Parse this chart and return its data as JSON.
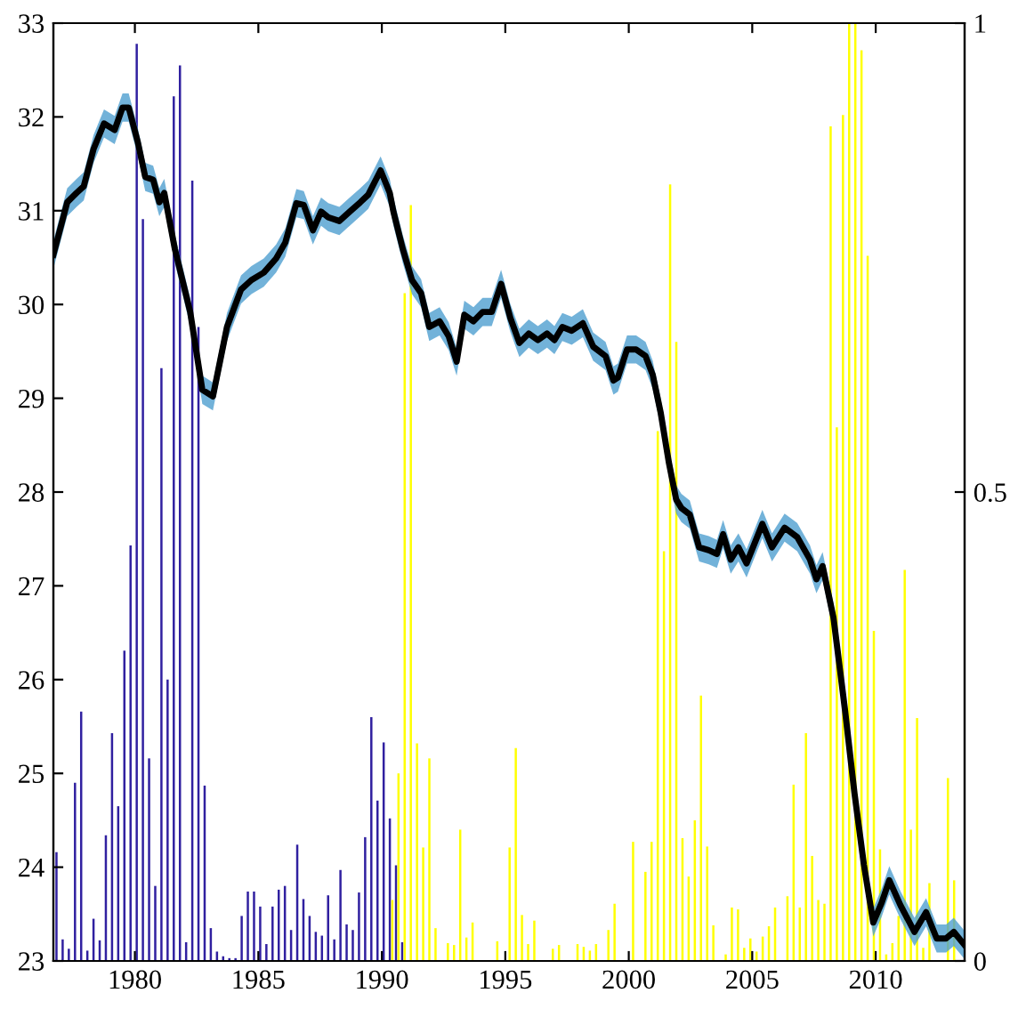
{
  "chart_data": {
    "type": "line",
    "xlim": [
      1976.7,
      2013.6
    ],
    "xticks": [
      1980,
      1985,
      1990,
      1995,
      2000,
      2005,
      2010
    ],
    "ylim": [
      23,
      33
    ],
    "yticks": [
      23,
      24,
      25,
      26,
      27,
      28,
      29,
      30,
      31,
      32,
      33
    ],
    "y2lim": [
      0,
      1
    ],
    "y2ticks": [
      0,
      0.5,
      1
    ],
    "grid": false,
    "legend": false,
    "series": [
      {
        "type": "bar",
        "axis": "y2",
        "color": "#3020a0",
        "x": [
          1976.875,
          1977.125,
          1977.375,
          1977.625,
          1977.875,
          1978.125,
          1978.375,
          1978.625,
          1978.875,
          1979.125,
          1979.375,
          1979.625,
          1979.875,
          1980.125,
          1980.375,
          1980.625,
          1980.875,
          1981.125,
          1981.375,
          1981.625,
          1981.875,
          1982.125,
          1982.375,
          1982.625,
          1982.875,
          1983.125,
          1983.375,
          1983.625,
          1983.875,
          1984.125,
          1984.375,
          1984.625,
          1984.875,
          1985.125,
          1985.375,
          1985.625,
          1985.875,
          1986.125,
          1986.375,
          1986.625,
          1986.875,
          1987.125,
          1987.375,
          1987.625,
          1987.875,
          1988.125,
          1988.375,
          1988.625,
          1988.875,
          1989.125,
          1989.375,
          1989.625,
          1989.875,
          1990.125,
          1990.375,
          1990.625,
          1990.875
        ],
        "values": [
          0.116,
          0.023,
          0.013,
          0.19,
          0.266,
          0.011,
          0.045,
          0.022,
          0.134,
          0.243,
          0.165,
          0.331,
          0.443,
          0.978,
          0.791,
          0.216,
          0.08,
          0.632,
          0.3,
          0.922,
          0.955,
          0.02,
          0.832,
          0.676,
          0.187,
          0.035,
          0.01,
          0.005,
          0.003,
          0.003,
          0.048,
          0.074,
          0.074,
          0.058,
          0.018,
          0.058,
          0.076,
          0.08,
          0.033,
          0.124,
          0.066,
          0.048,
          0.031,
          0.027,
          0.07,
          0.023,
          0.097,
          0.039,
          0.033,
          0.073,
          0.132,
          0.26,
          0.171,
          0.233,
          0.152,
          0.102,
          0.02
        ]
      },
      {
        "type": "bar",
        "axis": "y2",
        "color": "#ffff00",
        "x": [
          1990.375,
          1990.625,
          1990.875,
          1991.125,
          1991.375,
          1991.625,
          1991.875,
          1992.125,
          1992.375,
          1992.625,
          1992.875,
          1993.125,
          1993.375,
          1993.625,
          1993.875,
          1994.125,
          1994.375,
          1994.625,
          1994.875,
          1995.125,
          1995.375,
          1995.625,
          1995.875,
          1996.125,
          1996.375,
          1996.625,
          1996.875,
          1997.125,
          1997.375,
          1997.625,
          1997.875,
          1998.125,
          1998.375,
          1998.625,
          1998.875,
          1999.125,
          1999.375,
          1999.625,
          1999.875,
          2000.125,
          2000.375,
          2000.625,
          2000.875,
          2001.125,
          2001.375,
          2001.625,
          2001.875,
          2002.125,
          2002.375,
          2002.625,
          2002.875,
          2003.125,
          2003.375,
          2003.625,
          2003.875,
          2004.125,
          2004.375,
          2004.625,
          2004.875,
          2005.125,
          2005.375,
          2005.625,
          2005.875,
          2006.125,
          2006.375,
          2006.625,
          2006.875,
          2007.125,
          2007.375,
          2007.625,
          2007.875,
          2008.125,
          2008.375,
          2008.625,
          2008.875,
          2009.125,
          2009.375,
          2009.625,
          2009.875,
          2010.125,
          2010.375,
          2010.625,
          2010.875,
          2011.125,
          2011.375,
          2011.625,
          2011.875,
          2012.125,
          2012.375,
          2012.625,
          2012.875,
          2013.125
        ],
        "values": [
          0.065,
          0.2,
          0.712,
          0.806,
          0.232,
          0.121,
          0.216,
          0.035,
          0,
          0.019,
          0.017,
          0.14,
          0.025,
          0.041,
          0,
          0,
          0,
          0.021,
          0,
          0.121,
          0.227,
          0.049,
          0.018,
          0.043,
          0,
          0,
          0.013,
          0.017,
          0,
          0,
          0.018,
          0.015,
          0.011,
          0.018,
          0,
          0.033,
          0.061,
          0,
          0,
          0.127,
          0,
          0.095,
          0.127,
          0.565,
          0.437,
          0.828,
          0.66,
          0.131,
          0.09,
          0.15,
          0.283,
          0.122,
          0.038,
          0,
          0.007,
          0.057,
          0.055,
          0.014,
          0.024,
          0.01,
          0.026,
          0.037,
          0.057,
          0,
          0.069,
          0.188,
          0.057,
          0.243,
          0.112,
          0.065,
          0.061,
          0.89,
          0.569,
          0.902,
          1.0,
          1.0,
          0.971,
          0.752,
          0.352,
          0.119,
          0.007,
          0.019,
          0.048,
          0.417,
          0.14,
          0.259,
          0.014,
          0.083,
          null,
          null,
          0.195,
          0.086
        ]
      },
      {
        "color": "#000000",
        "marker": "none",
        "line_style": "solid",
        "x": [
          1976.7,
          1977.26,
          1977.64,
          1977.93,
          1978.33,
          1978.75,
          1979.18,
          1979.5,
          1979.75,
          1980.12,
          1980.42,
          1980.74,
          1980.99,
          1981.19,
          1981.62,
          1982.24,
          1982.73,
          1983.16,
          1983.73,
          1984.3,
          1984.72,
          1985.22,
          1985.72,
          1986.09,
          1986.54,
          1986.84,
          1987.21,
          1987.54,
          1987.83,
          1988.28,
          1988.7,
          1989.13,
          1989.45,
          1989.95,
          1990.32,
          1990.47,
          1990.85,
          1991.22,
          1991.59,
          1991.92,
          1992.34,
          1992.71,
          1993.03,
          1993.34,
          1993.71,
          1994.08,
          1994.45,
          1994.83,
          1995.2,
          1995.57,
          1995.95,
          1996.32,
          1996.69,
          1996.99,
          1997.31,
          1997.69,
          1998.14,
          1998.56,
          1999.06,
          1999.38,
          1999.56,
          1999.93,
          2000.3,
          2000.68,
          2000.97,
          2001.29,
          2001.62,
          2001.92,
          2002.13,
          2002.47,
          2002.85,
          2003.24,
          2003.57,
          2003.82,
          2004.13,
          2004.44,
          2004.77,
          2005.41,
          2005.8,
          2006.31,
          2006.82,
          2007.34,
          2007.6,
          2007.85,
          2008.29,
          2008.75,
          2009.14,
          2009.52,
          2009.9,
          2010.24,
          2010.55,
          2011.01,
          2011.57,
          2012.04,
          2012.47,
          2012.85,
          2013.16,
          2013.6
        ],
        "values": [
          30.53,
          31.09,
          31.19,
          31.26,
          31.66,
          31.93,
          31.86,
          32.1,
          32.1,
          31.73,
          31.36,
          31.33,
          31.09,
          31.19,
          30.59,
          29.92,
          29.09,
          29.02,
          29.76,
          30.16,
          30.26,
          30.34,
          30.49,
          30.66,
          31.08,
          31.06,
          30.79,
          30.99,
          30.93,
          30.89,
          30.99,
          31.09,
          31.17,
          31.43,
          31.19,
          30.99,
          30.59,
          30.26,
          30.12,
          29.76,
          29.82,
          29.66,
          29.39,
          29.89,
          29.82,
          29.92,
          29.92,
          30.22,
          29.86,
          29.59,
          29.69,
          29.62,
          29.69,
          29.62,
          29.76,
          29.72,
          29.8,
          29.55,
          29.45,
          29.19,
          29.22,
          29.52,
          29.52,
          29.45,
          29.25,
          28.85,
          28.32,
          27.92,
          27.83,
          27.76,
          27.41,
          27.38,
          27.34,
          27.55,
          27.28,
          27.41,
          27.24,
          27.66,
          27.41,
          27.62,
          27.52,
          27.28,
          27.07,
          27.21,
          26.66,
          25.69,
          24.79,
          24.03,
          23.41,
          23.62,
          23.86,
          23.59,
          23.31,
          23.52,
          23.24,
          23.24,
          23.31,
          23.17
        ],
        "lower": [
          30.38,
          30.94,
          31.04,
          31.11,
          31.51,
          31.78,
          31.71,
          31.95,
          31.95,
          31.58,
          31.21,
          31.18,
          30.94,
          31.04,
          30.44,
          29.77,
          28.94,
          28.87,
          29.61,
          30.01,
          30.11,
          30.19,
          30.34,
          30.51,
          30.93,
          30.91,
          30.64,
          30.84,
          30.78,
          30.74,
          30.84,
          30.94,
          31.02,
          31.28,
          31.04,
          30.84,
          30.44,
          30.11,
          29.97,
          29.61,
          29.67,
          29.51,
          29.24,
          29.74,
          29.67,
          29.77,
          29.77,
          30.07,
          29.71,
          29.44,
          29.54,
          29.47,
          29.54,
          29.47,
          29.61,
          29.57,
          29.65,
          29.4,
          29.3,
          29.04,
          29.07,
          29.37,
          29.37,
          29.3,
          29.1,
          28.7,
          28.17,
          27.77,
          27.68,
          27.61,
          27.26,
          27.23,
          27.19,
          27.4,
          27.13,
          27.26,
          27.09,
          27.51,
          27.26,
          27.47,
          27.37,
          27.13,
          26.92,
          27.06,
          26.51,
          25.54,
          24.64,
          23.88,
          23.26,
          23.47,
          23.71,
          23.44,
          23.16,
          23.37,
          23.09,
          23.09,
          23.16,
          23.02
        ],
        "upper": [
          30.68,
          31.24,
          31.34,
          31.41,
          31.81,
          32.08,
          32.01,
          32.25,
          32.25,
          31.88,
          31.51,
          31.48,
          31.24,
          31.34,
          30.74,
          30.07,
          29.24,
          29.17,
          29.91,
          30.31,
          30.41,
          30.49,
          30.64,
          30.81,
          31.23,
          31.21,
          30.94,
          31.14,
          31.08,
          31.04,
          31.14,
          31.24,
          31.32,
          31.58,
          31.34,
          31.14,
          30.74,
          30.41,
          30.27,
          29.91,
          29.97,
          29.81,
          29.54,
          30.04,
          29.97,
          30.07,
          30.07,
          30.37,
          30.01,
          29.74,
          29.84,
          29.77,
          29.84,
          29.77,
          29.91,
          29.87,
          29.95,
          29.7,
          29.6,
          29.34,
          29.37,
          29.67,
          29.67,
          29.6,
          29.4,
          29.0,
          28.47,
          28.07,
          27.98,
          27.91,
          27.56,
          27.53,
          27.49,
          27.7,
          27.43,
          27.56,
          27.39,
          27.81,
          27.56,
          27.77,
          27.67,
          27.43,
          27.22,
          27.36,
          26.81,
          25.84,
          24.94,
          24.18,
          23.56,
          23.77,
          24.01,
          23.74,
          23.46,
          23.67,
          23.39,
          23.39,
          23.46,
          23.32
        ]
      }
    ]
  }
}
